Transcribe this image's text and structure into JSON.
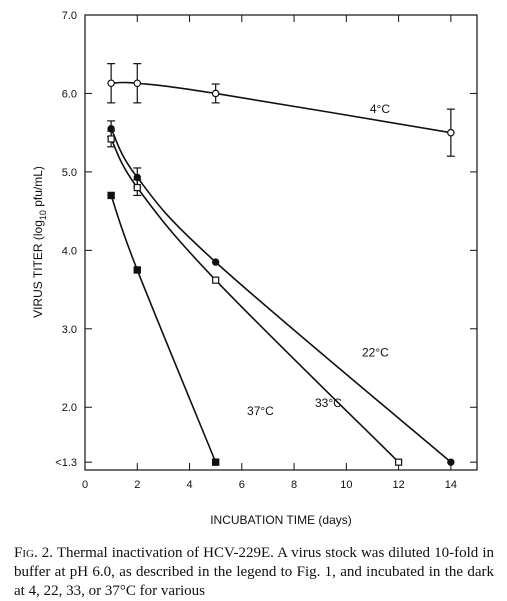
{
  "chart_data": {
    "type": "line",
    "title": "",
    "xlabel": "INCUBATION TIME (days)",
    "ylabel_main": "VIRUS TITER (log",
    "ylabel_sub": "10",
    "ylabel_end": " pfu/mL)",
    "xlim": [
      0,
      15
    ],
    "ylim": [
      1.2,
      7.0
    ],
    "x_ticks": [
      0,
      2,
      4,
      6,
      8,
      10,
      12,
      14
    ],
    "y_ticks": [
      {
        "value": 2.0,
        "label": "2.0"
      },
      {
        "value": 3.0,
        "label": "3.0"
      },
      {
        "value": 4.0,
        "label": "4.0"
      },
      {
        "value": 5.0,
        "label": "5.0"
      },
      {
        "value": 6.0,
        "label": "6.0"
      },
      {
        "value": 7.0,
        "label": "7.0"
      },
      {
        "value": 1.3,
        "label": "<1.3"
      }
    ],
    "grid": false,
    "legend": "none",
    "series": [
      {
        "name": "4°C",
        "marker": "open-circle",
        "x": [
          1,
          2,
          5,
          14
        ],
        "y": [
          6.13,
          6.13,
          6.0,
          5.5
        ],
        "error": [
          0.25,
          0.25,
          0.12,
          0.3
        ]
      },
      {
        "name": "22°C",
        "marker": "filled-circle",
        "x": [
          1,
          2,
          5,
          14
        ],
        "y": [
          5.55,
          4.93,
          3.85,
          1.3
        ],
        "error": [
          0.1,
          0.12,
          0,
          0
        ]
      },
      {
        "name": "33°C",
        "marker": "open-square",
        "x": [
          1,
          2,
          5,
          12
        ],
        "y": [
          5.42,
          4.8,
          3.62,
          1.3
        ],
        "error": [
          0.1,
          0.1,
          0,
          0
        ]
      },
      {
        "name": "37°C",
        "marker": "filled-square",
        "x": [
          1,
          2,
          5
        ],
        "y": [
          4.7,
          3.75,
          1.3
        ],
        "error": [
          0,
          0,
          0
        ]
      }
    ]
  },
  "caption": {
    "fig_label": "Fig. 2.",
    "text": " Thermal inactivation of HCV-229E. A virus stock was diluted 10-fold in buffer at pH 6.0, as described in the legend to Fig. 1, and incubated in the dark at 4, 22, 33, or 37°C for various"
  }
}
